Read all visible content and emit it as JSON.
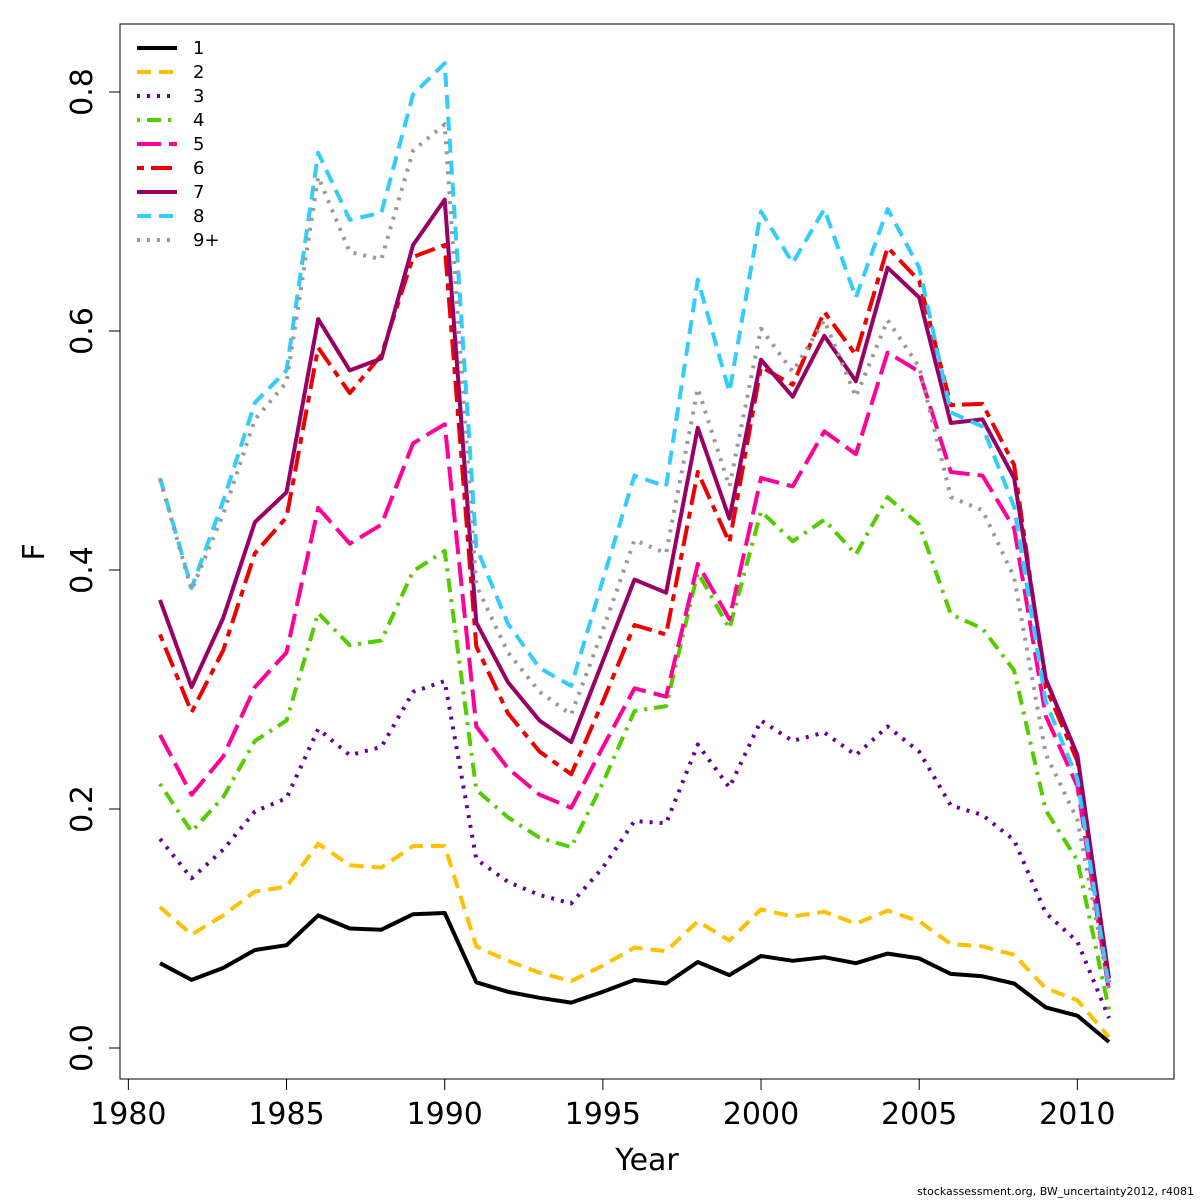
{
  "chart_data": {
    "type": "line",
    "xlabel": "Year",
    "ylabel": "F",
    "xlim": [
      1980,
      2012
    ],
    "ylim": [
      0,
      0.85
    ],
    "x_ticks": [
      1980,
      1985,
      1990,
      1995,
      2000,
      2005,
      2010
    ],
    "y_ticks": [
      0.0,
      0.2,
      0.4,
      0.6,
      0.8
    ],
    "y_tick_labels": [
      "0.0",
      "0.2",
      "0.4",
      "0.6",
      "0.8"
    ],
    "legend_position": "top-left",
    "grid": false,
    "x": [
      1981,
      1982,
      1983,
      1984,
      1985,
      1986,
      1987,
      1988,
      1989,
      1990,
      1991,
      1992,
      1993,
      1994,
      1995,
      1996,
      1997,
      1998,
      1999,
      2000,
      2001,
      2002,
      2003,
      2004,
      2005,
      2006,
      2007,
      2008,
      2009,
      2010,
      2011
    ],
    "series": [
      {
        "name": "1",
        "color": "#000000",
        "dash": "solid",
        "values": [
          0.071,
          0.057,
          0.067,
          0.082,
          0.086,
          0.111,
          0.1,
          0.099,
          0.112,
          0.113,
          0.055,
          0.047,
          0.042,
          0.038,
          0.047,
          0.057,
          0.054,
          0.072,
          0.061,
          0.077,
          0.073,
          0.076,
          0.071,
          0.079,
          0.075,
          0.062,
          0.06,
          0.054,
          0.034,
          0.027,
          0.005
        ]
      },
      {
        "name": "2",
        "color": "#FFC000",
        "dash": "dashed",
        "values": [
          0.118,
          0.095,
          0.111,
          0.131,
          0.135,
          0.171,
          0.153,
          0.151,
          0.169,
          0.169,
          0.085,
          0.073,
          0.063,
          0.056,
          0.069,
          0.084,
          0.081,
          0.106,
          0.09,
          0.116,
          0.11,
          0.114,
          0.104,
          0.115,
          0.106,
          0.087,
          0.085,
          0.078,
          0.05,
          0.04,
          0.009
        ]
      },
      {
        "name": "3",
        "color": "#660099",
        "dash": "dotted",
        "values": [
          0.175,
          0.142,
          0.166,
          0.198,
          0.209,
          0.267,
          0.245,
          0.252,
          0.298,
          0.307,
          0.158,
          0.139,
          0.128,
          0.121,
          0.151,
          0.19,
          0.188,
          0.254,
          0.218,
          0.274,
          0.257,
          0.264,
          0.245,
          0.269,
          0.248,
          0.203,
          0.195,
          0.174,
          0.113,
          0.089,
          0.025
        ]
      },
      {
        "name": "4",
        "color": "#55CC00",
        "dash": "dotdash",
        "values": [
          0.221,
          0.181,
          0.21,
          0.257,
          0.274,
          0.364,
          0.337,
          0.341,
          0.399,
          0.416,
          0.216,
          0.193,
          0.176,
          0.168,
          0.222,
          0.282,
          0.286,
          0.398,
          0.351,
          0.449,
          0.424,
          0.442,
          0.413,
          0.461,
          0.438,
          0.363,
          0.351,
          0.316,
          0.199,
          0.157,
          0.032
        ]
      },
      {
        "name": "5",
        "color": "#FF0099",
        "dash": "longdash",
        "values": [
          0.262,
          0.212,
          0.244,
          0.302,
          0.331,
          0.452,
          0.422,
          0.438,
          0.506,
          0.522,
          0.269,
          0.234,
          0.212,
          0.201,
          0.252,
          0.301,
          0.294,
          0.405,
          0.359,
          0.477,
          0.47,
          0.516,
          0.497,
          0.582,
          0.566,
          0.482,
          0.479,
          0.435,
          0.278,
          0.219,
          0.047
        ]
      },
      {
        "name": "6",
        "color": "#EE0000",
        "dash": "twodash",
        "values": [
          0.346,
          0.281,
          0.333,
          0.414,
          0.444,
          0.586,
          0.548,
          0.58,
          0.662,
          0.672,
          0.336,
          0.28,
          0.248,
          0.229,
          0.29,
          0.354,
          0.346,
          0.482,
          0.423,
          0.57,
          0.555,
          0.616,
          0.58,
          0.67,
          0.642,
          0.538,
          0.539,
          0.488,
          0.302,
          0.24,
          0.055
        ]
      },
      {
        "name": "7",
        "color": "#990066",
        "dash": "solid",
        "values": [
          0.375,
          0.302,
          0.36,
          0.44,
          0.465,
          0.61,
          0.567,
          0.577,
          0.672,
          0.71,
          0.356,
          0.306,
          0.274,
          0.256,
          0.324,
          0.392,
          0.381,
          0.519,
          0.443,
          0.576,
          0.545,
          0.596,
          0.558,
          0.653,
          0.628,
          0.523,
          0.526,
          0.477,
          0.309,
          0.245,
          0.058
        ]
      },
      {
        "name": "8",
        "color": "#33CCFF",
        "dash": "dashed",
        "values": [
          0.477,
          0.385,
          0.458,
          0.54,
          0.567,
          0.749,
          0.693,
          0.699,
          0.798,
          0.824,
          0.419,
          0.355,
          0.318,
          0.303,
          0.392,
          0.479,
          0.47,
          0.643,
          0.549,
          0.7,
          0.657,
          0.702,
          0.628,
          0.702,
          0.653,
          0.532,
          0.52,
          0.453,
          0.29,
          0.225,
          0.05
        ]
      },
      {
        "name": "9+",
        "color": "#999999",
        "dash": "dotted",
        "values": [
          0.476,
          0.383,
          0.447,
          0.526,
          0.557,
          0.729,
          0.666,
          0.66,
          0.751,
          0.773,
          0.387,
          0.331,
          0.298,
          0.279,
          0.35,
          0.425,
          0.414,
          0.552,
          0.47,
          0.602,
          0.566,
          0.609,
          0.545,
          0.609,
          0.57,
          0.461,
          0.45,
          0.394,
          0.246,
          0.191,
          0.05
        ]
      }
    ]
  },
  "footer": {
    "credit": "stockassessment.org, BW_uncertainty2012, r4081"
  }
}
